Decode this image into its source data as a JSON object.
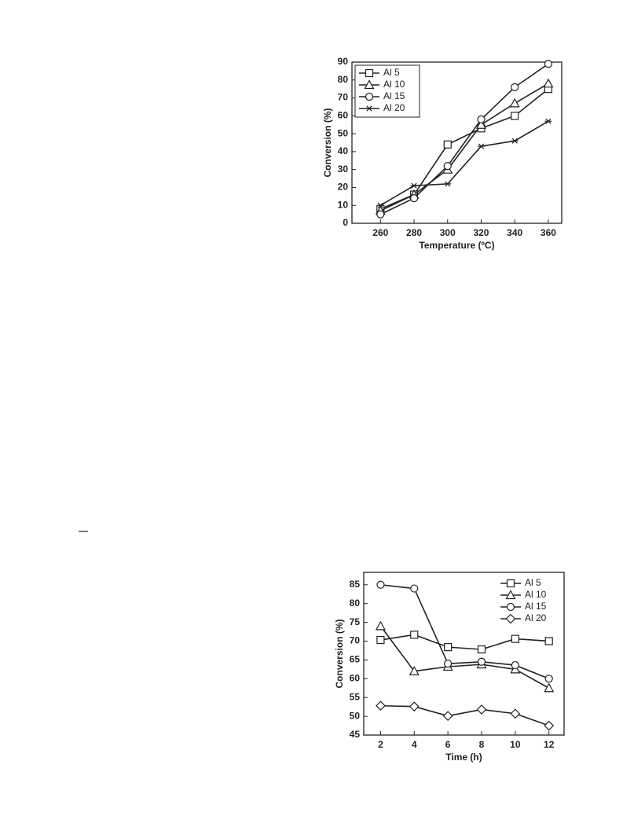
{
  "stray_mark": "—",
  "chart_data": [
    {
      "type": "line",
      "xlabel": "Temperature (ºC)",
      "ylabel": "Conversion (%)",
      "x": [
        260,
        280,
        300,
        320,
        340,
        360
      ],
      "xlim": [
        243,
        368
      ],
      "xticks": [
        260,
        280,
        300,
        320,
        340,
        360
      ],
      "ylim": [
        0,
        90
      ],
      "yticks": [
        0,
        10,
        20,
        30,
        40,
        50,
        60,
        70,
        80,
        90
      ],
      "legend": "upper-left",
      "legend_box": true,
      "series": [
        {
          "name": "Al 5",
          "color": "#222222",
          "marker": "square",
          "values": [
            8,
            16,
            44,
            53,
            60,
            75
          ]
        },
        {
          "name": "Al 10",
          "color": "#222222",
          "marker": "triangle",
          "values": [
            7,
            16,
            30,
            55,
            67,
            78
          ]
        },
        {
          "name": "Al 15",
          "color": "#222222",
          "marker": "circle",
          "values": [
            5,
            14,
            32,
            58,
            76,
            89
          ]
        },
        {
          "name": "Al 20",
          "color": "#222222",
          "marker": "star",
          "values": [
            10,
            21,
            22,
            43,
            46,
            57
          ]
        }
      ]
    },
    {
      "type": "line",
      "xlabel": "Time (h)",
      "ylabel": "Conversion (%)",
      "x": [
        2,
        4,
        6,
        8,
        10,
        12
      ],
      "xlim": [
        1,
        12.9
      ],
      "xticks": [
        2,
        4,
        6,
        8,
        10,
        12
      ],
      "ylim": [
        45,
        88.3
      ],
      "yticks": [
        45,
        50,
        55,
        60,
        65,
        70,
        75,
        80,
        85
      ],
      "legend": "upper-right",
      "legend_box": false,
      "series": [
        {
          "name": "Al 5",
          "color": "#222222",
          "marker": "square",
          "values": [
            70.3,
            71.7,
            68.4,
            67.8,
            70.6,
            70.0
          ]
        },
        {
          "name": "Al 10",
          "color": "#222222",
          "marker": "triangle",
          "values": [
            74,
            62,
            63.2,
            63.8,
            62.5,
            57.5
          ]
        },
        {
          "name": "Al 15",
          "color": "#222222",
          "marker": "circle",
          "values": [
            85,
            84,
            64,
            64.5,
            63.6,
            60
          ]
        },
        {
          "name": "Al 20",
          "color": "#222222",
          "marker": "diamond",
          "values": [
            52.8,
            52.6,
            50.1,
            51.8,
            50.7,
            47.5
          ]
        }
      ]
    }
  ]
}
